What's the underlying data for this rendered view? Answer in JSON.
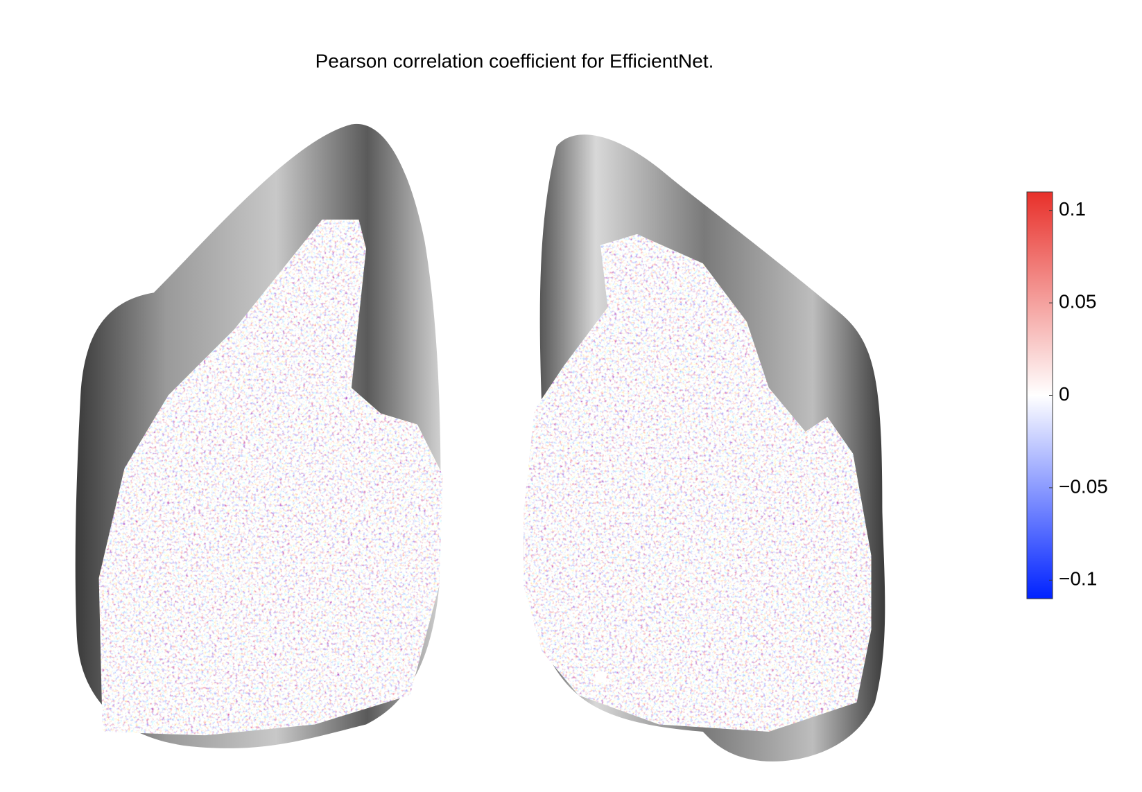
{
  "chart_data": {
    "type": "brain-surface",
    "title": "Pearson correlation coefficient for EfficientNet.",
    "colormap": [
      "#0022ff",
      "#ffffff",
      "#e8302a"
    ],
    "clim": [
      -0.11,
      0.11
    ],
    "cticks": [
      {
        "value": -0.1,
        "label": "−0.1"
      },
      {
        "value": -0.05,
        "label": "−0.05"
      },
      0,
      0.05,
      0.1
    ]
  }
}
